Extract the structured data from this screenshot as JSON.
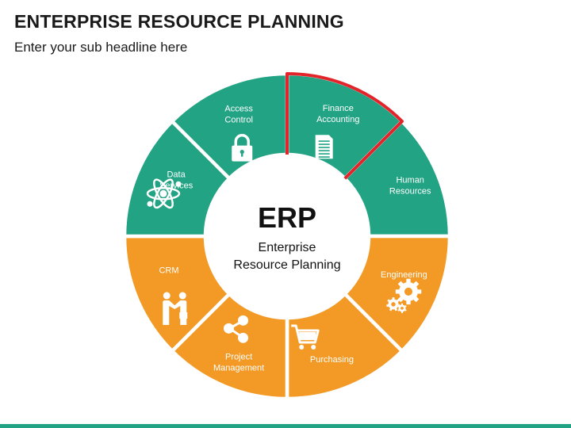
{
  "header": {
    "title": "ENTERPRISE RESOURCE PLANNING",
    "subtitle": "Enter your sub headline here"
  },
  "center": {
    "title": "ERP",
    "subtitle_line1": "Enterprise",
    "subtitle_line2": "Resource Planning"
  },
  "colors": {
    "teal": "#22a383",
    "orange": "#f39a26",
    "highlight": "#e3242b",
    "bottom_bar": "#22a383"
  },
  "segments": [
    {
      "id": "finance-accounting",
      "label_lines": [
        "Finance",
        "Accounting"
      ],
      "icon": "document-icon",
      "color": "teal",
      "highlighted": true
    },
    {
      "id": "human-resources",
      "label_lines": [
        "Human",
        "Resources"
      ],
      "icon": "user-icon",
      "color": "teal",
      "highlighted": false
    },
    {
      "id": "engineering",
      "label_lines": [
        "Engineering"
      ],
      "icon": "gears-icon",
      "color": "orange",
      "highlighted": false
    },
    {
      "id": "purchasing",
      "label_lines": [
        "Purchasing"
      ],
      "icon": "shopping-cart-icon",
      "color": "orange",
      "highlighted": false
    },
    {
      "id": "project-management",
      "label_lines": [
        "Project",
        "Management"
      ],
      "icon": "share-nodes-icon",
      "color": "orange",
      "highlighted": false
    },
    {
      "id": "crm",
      "label_lines": [
        "CRM"
      ],
      "icon": "handshake-icon",
      "color": "orange",
      "highlighted": false
    },
    {
      "id": "data-services",
      "label_lines": [
        "Data",
        "Services"
      ],
      "icon": "atom-icon",
      "color": "teal",
      "highlighted": false
    },
    {
      "id": "access-control",
      "label_lines": [
        "Access",
        "Control"
      ],
      "icon": "padlock-icon",
      "color": "teal",
      "highlighted": false
    }
  ]
}
